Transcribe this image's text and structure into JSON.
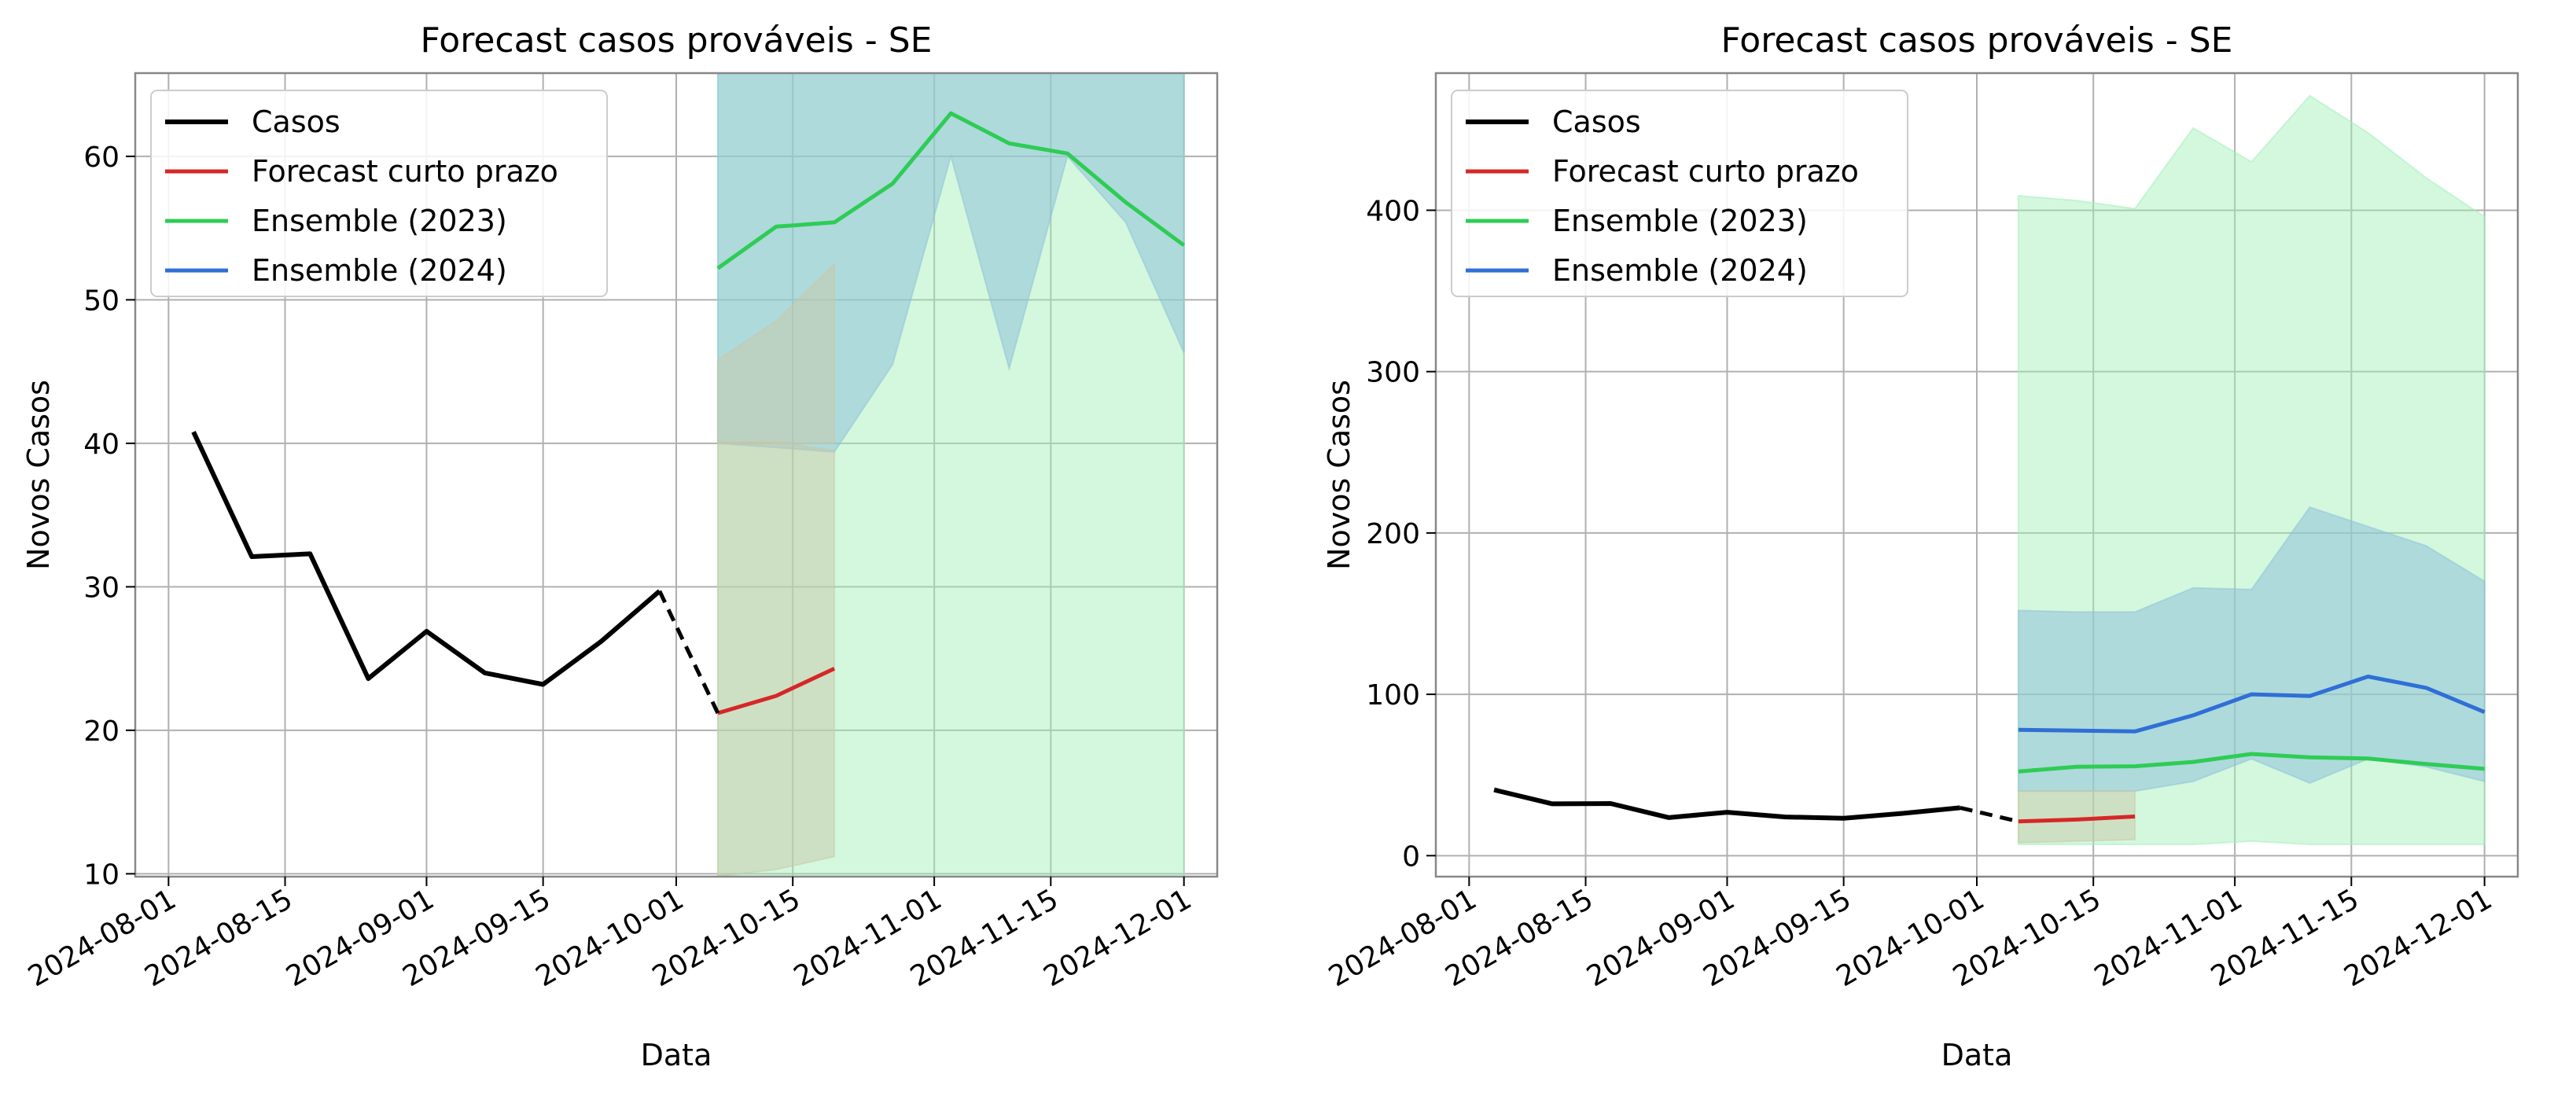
{
  "chart_data": [
    {
      "type": "line",
      "title": "Forecast casos prováveis - SE",
      "xlabel": "Data",
      "ylabel": "Novos Casos",
      "xlim": [
        "2024-07-28",
        "2024-12-05"
      ],
      "ylim": [
        9.8,
        65.8
      ],
      "x_ticks": [
        "2024-08-01",
        "2024-08-15",
        "2024-09-01",
        "2024-09-15",
        "2024-10-01",
        "2024-10-15",
        "2024-11-01",
        "2024-11-15",
        "2024-12-01"
      ],
      "y_ticks": [
        10,
        20,
        30,
        40,
        50,
        60
      ],
      "grid": true,
      "legend_position": "top-left",
      "legend": [
        "Casos",
        "Forecast curto prazo",
        "Ensemble (2023)",
        "Ensemble (2024)"
      ],
      "colors": {
        "casos": "#000000",
        "forecast": "#d62728",
        "ens2023": "#2ecc55",
        "ens2024": "#2f6fd6",
        "band2023": "#9ff0b6",
        "band2024": "#8ec1d8",
        "bandForecast": "#c8c8a8"
      },
      "series": [
        {
          "name": "Casos",
          "x": [
            "2024-08-04",
            "2024-08-11",
            "2024-08-18",
            "2024-08-25",
            "2024-09-01",
            "2024-09-08",
            "2024-09-15",
            "2024-09-22",
            "2024-09-29"
          ],
          "y": [
            40.8,
            32.1,
            32.3,
            23.6,
            26.9,
            24.0,
            23.2,
            26.2,
            29.7
          ]
        },
        {
          "name": "",
          "style": "dashed",
          "x": [
            "2024-09-29",
            "2024-10-06"
          ],
          "y": [
            29.7,
            21.2
          ]
        },
        {
          "name": "Forecast curto prazo",
          "x": [
            "2024-10-06",
            "2024-10-13",
            "2024-10-20"
          ],
          "y": [
            21.2,
            22.4,
            24.3
          ],
          "band_lower": [
            9.8,
            10.3,
            11.2
          ],
          "band_upper": [
            40.1,
            40.1,
            39.5
          ]
        },
        {
          "name": "Ensemble (2023)",
          "x": [
            "2024-10-06",
            "2024-10-13",
            "2024-10-20",
            "2024-10-27",
            "2024-11-03",
            "2024-11-10",
            "2024-11-17",
            "2024-11-24",
            "2024-12-01"
          ],
          "y": [
            52.2,
            55.1,
            55.4,
            58.1,
            63.0,
            60.9,
            60.2,
            56.8,
            53.8
          ],
          "band_lower": [
            9.8,
            9.8,
            9.8,
            9.8,
            9.8,
            9.8,
            9.8,
            9.8,
            9.8
          ],
          "band_upper": [
            65.8,
            65.8,
            65.8,
            65.8,
            65.8,
            65.8,
            65.8,
            65.8,
            65.8
          ]
        },
        {
          "name": "Ensemble (2024)",
          "x": [
            "2024-10-06",
            "2024-10-13",
            "2024-10-20",
            "2024-10-27",
            "2024-11-03",
            "2024-11-10",
            "2024-11-17",
            "2024-11-24",
            "2024-12-01"
          ],
          "y": [
            null,
            null,
            null,
            null,
            null,
            null,
            null,
            null,
            null
          ],
          "band_lower": [
            40.0,
            39.7,
            39.4,
            45.5,
            60.0,
            45.2,
            60.0,
            55.4,
            46.3
          ],
          "band_upper": [
            65.8,
            65.8,
            65.8,
            65.8,
            65.8,
            65.8,
            65.8,
            65.8,
            65.8
          ]
        },
        {
          "name": "",
          "role": "band",
          "x": [
            "2024-10-06",
            "2024-10-13",
            "2024-10-20"
          ],
          "band_lower": [
            40.0,
            40.0,
            40.0
          ],
          "band_upper": [
            45.8,
            48.5,
            52.5
          ]
        }
      ]
    },
    {
      "type": "line",
      "title": "Forecast casos prováveis - SE",
      "xlabel": "Data",
      "ylabel": "Novos Casos",
      "xlim": [
        "2024-07-28",
        "2024-12-05"
      ],
      "ylim": [
        -13,
        485
      ],
      "x_ticks": [
        "2024-08-01",
        "2024-08-15",
        "2024-09-01",
        "2024-09-15",
        "2024-10-01",
        "2024-10-15",
        "2024-11-01",
        "2024-11-15",
        "2024-12-01"
      ],
      "y_ticks": [
        0,
        100,
        200,
        300,
        400
      ],
      "grid": true,
      "legend_position": "top-left",
      "legend": [
        "Casos",
        "Forecast curto prazo",
        "Ensemble (2023)",
        "Ensemble (2024)"
      ],
      "colors": {
        "casos": "#000000",
        "forecast": "#d62728",
        "ens2023": "#2ecc55",
        "ens2024": "#2f6fd6",
        "band2023": "#9ff0b6",
        "band2024": "#8ec1d8",
        "bandForecast": "#c8c8a8"
      },
      "series": [
        {
          "name": "Casos",
          "x": [
            "2024-08-04",
            "2024-08-11",
            "2024-08-18",
            "2024-08-25",
            "2024-09-01",
            "2024-09-08",
            "2024-09-15",
            "2024-09-22",
            "2024-09-29"
          ],
          "y": [
            40.8,
            32.1,
            32.3,
            23.6,
            26.9,
            24.0,
            23.2,
            26.2,
            29.7
          ]
        },
        {
          "name": "",
          "style": "dashed",
          "x": [
            "2024-09-29",
            "2024-10-06"
          ],
          "y": [
            29.7,
            21.2
          ]
        },
        {
          "name": "Forecast curto prazo",
          "x": [
            "2024-10-06",
            "2024-10-13",
            "2024-10-20"
          ],
          "y": [
            21.2,
            22.4,
            24.3
          ],
          "band_lower": [
            8,
            9,
            10
          ],
          "band_upper": [
            40,
            40,
            40
          ]
        },
        {
          "name": "Ensemble (2023)",
          "x": [
            "2024-10-06",
            "2024-10-13",
            "2024-10-20",
            "2024-10-27",
            "2024-11-03",
            "2024-11-10",
            "2024-11-17",
            "2024-11-24",
            "2024-12-01"
          ],
          "y": [
            52.2,
            55.1,
            55.4,
            58.1,
            63.0,
            60.9,
            60.2,
            56.8,
            53.8
          ],
          "band_lower": [
            7,
            7,
            7,
            7,
            9,
            7,
            7,
            7,
            7
          ],
          "band_upper": [
            409,
            406,
            401,
            451,
            430,
            471,
            448,
            420,
            396
          ]
        },
        {
          "name": "Ensemble (2024)",
          "x": [
            "2024-10-06",
            "2024-10-13",
            "2024-10-20",
            "2024-10-27",
            "2024-11-03",
            "2024-11-10",
            "2024-11-17",
            "2024-11-24",
            "2024-12-01"
          ],
          "y": [
            78,
            77.5,
            77,
            87,
            100,
            99,
            111,
            104,
            89
          ],
          "band_lower": [
            40,
            40,
            40,
            46,
            60,
            45,
            60,
            55,
            46
          ],
          "band_upper": [
            152,
            151,
            151,
            166,
            165,
            216,
            204,
            192,
            170
          ]
        }
      ]
    }
  ]
}
